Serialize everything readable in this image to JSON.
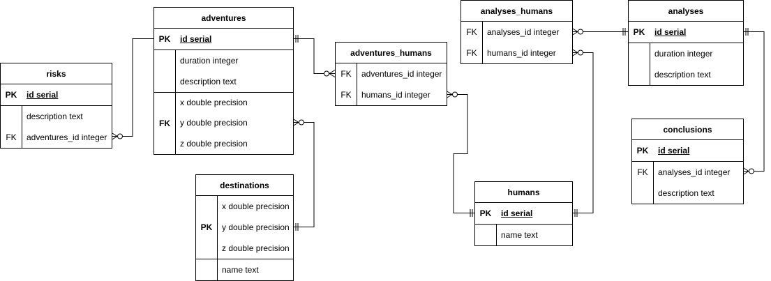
{
  "tables": {
    "risks": {
      "title": "risks",
      "pk_label": "PK",
      "pk_field": "id serial",
      "rows": [
        {
          "key": "",
          "text": "description text"
        },
        {
          "key": "FK",
          "text": "adventures_id integer"
        }
      ]
    },
    "adventures": {
      "title": "adventures",
      "pk_label": "PK",
      "pk_field": "id serial",
      "rows": [
        {
          "key": "",
          "text": "duration integer"
        },
        {
          "key": "",
          "text": "description text"
        }
      ],
      "fk_label": "FK",
      "fk_rows": [
        "x double precision",
        "y double precision",
        "z double precision"
      ]
    },
    "destinations": {
      "title": "destinations",
      "pk_label": "PK",
      "pk_rows": [
        "x double precision",
        "y double precision",
        "z double precision"
      ],
      "rows": [
        {
          "key": "",
          "text": "name text"
        }
      ]
    },
    "adventures_humans": {
      "title": "adventures_humans",
      "rows": [
        {
          "key": "FK",
          "text": "adventures_id integer"
        },
        {
          "key": "FK",
          "text": "humans_id integer"
        }
      ]
    },
    "analyses_humans": {
      "title": "analyses_humans",
      "rows": [
        {
          "key": "FK",
          "text": "analyses_id integer"
        },
        {
          "key": "FK",
          "text": "humans_id integer"
        }
      ]
    },
    "humans": {
      "title": "humans",
      "pk_label": "PK",
      "pk_field": "id serial",
      "rows": [
        {
          "key": "",
          "text": "name text"
        }
      ]
    },
    "analyses": {
      "title": "analyses",
      "pk_label": "PK",
      "pk_field": "id serial",
      "rows": [
        {
          "key": "",
          "text": "duration integer"
        },
        {
          "key": "",
          "text": "description text"
        }
      ]
    },
    "conclusions": {
      "title": "conclusions",
      "pk_label": "PK",
      "pk_field": "id serial",
      "rows": [
        {
          "key": "FK",
          "text": "analyses_id integer"
        },
        {
          "key": "",
          "text": "description text"
        }
      ]
    }
  },
  "relationships": [
    {
      "from": "risks.adventures_id",
      "to": "adventures.id",
      "from_card": "zero-or-many",
      "to_card": "exactly-one"
    },
    {
      "from": "adventures_humans.adventures_id",
      "to": "adventures.id",
      "from_card": "zero-or-many",
      "to_card": "exactly-one"
    },
    {
      "from": "adventures.xyz",
      "to": "destinations.xyz",
      "from_card": "zero-or-many",
      "to_card": "exactly-one"
    },
    {
      "from": "adventures_humans.humans_id",
      "to": "humans.id",
      "from_card": "zero-or-many",
      "to_card": "exactly-one"
    },
    {
      "from": "analyses_humans.humans_id",
      "to": "humans.id",
      "from_card": "zero-or-many",
      "to_card": "exactly-one"
    },
    {
      "from": "analyses_humans.analyses_id",
      "to": "analyses.id",
      "from_card": "zero-or-many",
      "to_card": "exactly-one"
    },
    {
      "from": "conclusions.analyses_id",
      "to": "analyses.id",
      "from_card": "zero-or-many",
      "to_card": "exactly-one"
    }
  ]
}
